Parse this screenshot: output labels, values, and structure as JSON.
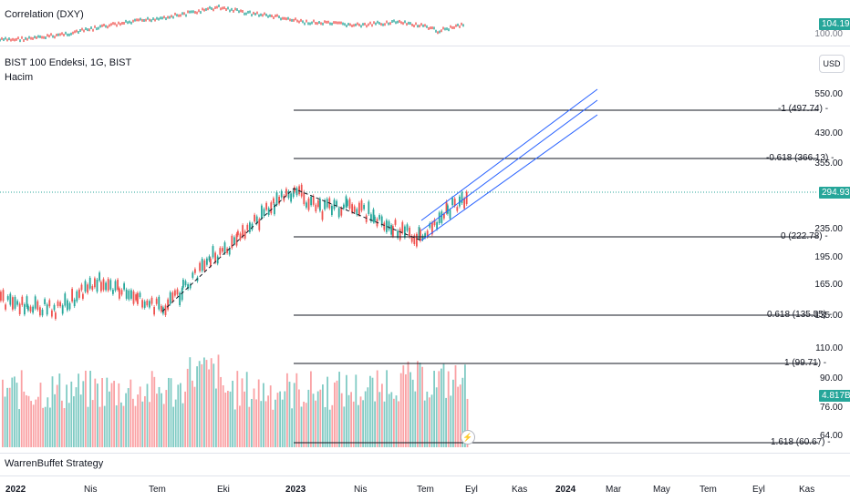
{
  "correlation": {
    "title": "Correlation (DXY)",
    "price_label": "104.19",
    "price_color": "#26a69a",
    "axis_label": "100.00"
  },
  "main": {
    "title": "BIST 100 Endeksi, 1G, BIST",
    "volume_label": "Hacim",
    "currency_button": "USD",
    "current_price": "294.93",
    "price_color": "#26a69a",
    "volume_value": "4.817B",
    "y_ticks": [
      "550.00",
      "430.00",
      "355.00",
      "235.00",
      "195.00",
      "165.00",
      "135.00",
      "110.00",
      "90.00",
      "76.00",
      "64.00"
    ],
    "fib_levels": [
      {
        "label": "-1 (497.74) -"
      },
      {
        "label": "-0.618 (366.13) -"
      },
      {
        "label": "0 (222.78) -"
      },
      {
        "label": "0.618 (135.55) -"
      },
      {
        "label": "1 (99.71) -"
      },
      {
        "label": "1.618 (60.67) -"
      }
    ]
  },
  "strategy": {
    "title": "WarrenBuffet Strategy"
  },
  "x_axis": {
    "ticks": [
      {
        "label": "2022",
        "bold": true
      },
      {
        "label": "Nis",
        "bold": false
      },
      {
        "label": "Tem",
        "bold": false
      },
      {
        "label": "Eki",
        "bold": false
      },
      {
        "label": "2023",
        "bold": true
      },
      {
        "label": "Nis",
        "bold": false
      },
      {
        "label": "Tem",
        "bold": false
      },
      {
        "label": "Eyl",
        "bold": false
      },
      {
        "label": "Kas",
        "bold": false
      },
      {
        "label": "2024",
        "bold": true
      },
      {
        "label": "Mar",
        "bold": false
      },
      {
        "label": "May",
        "bold": false
      },
      {
        "label": "Tem",
        "bold": false
      },
      {
        "label": "Eyl",
        "bold": false
      },
      {
        "label": "Kas",
        "bold": false
      }
    ]
  },
  "colors": {
    "up": "#26a69a",
    "down": "#ef5350",
    "fib_line": "#131722",
    "channel": "#2962ff"
  }
}
